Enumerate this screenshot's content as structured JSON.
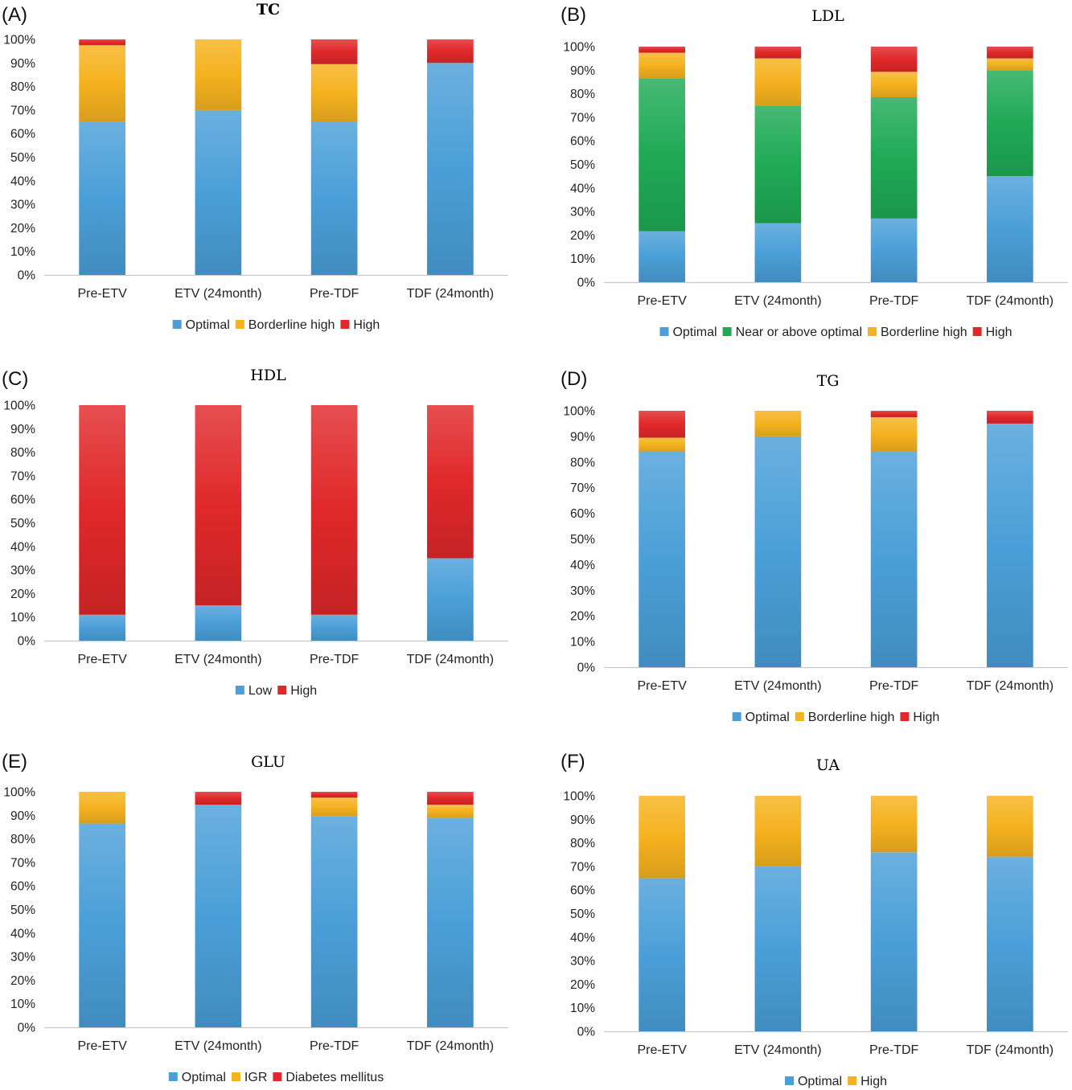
{
  "colors": {
    "Optimal": "#4a9fd8",
    "Low": "#4a9fd8",
    "Near or above optimal": "#1faa55",
    "Borderline high": "#f5b21f",
    "IGR": "#f5b21f",
    "High": "#e0282a",
    "Diabetes mellitus": "#e0282a",
    "UA High": "#f5b21f"
  },
  "chart_data": [
    {
      "panel": "(A)",
      "type": "bar",
      "stacked": true,
      "title": "TC",
      "title_bold": true,
      "categories": [
        "Pre-ETV",
        "ETV (24month)",
        "Pre-TDF",
        "TDF (24month)"
      ],
      "yticks": [
        "0%",
        "10%",
        "20%",
        "30%",
        "40%",
        "50%",
        "60%",
        "70%",
        "80%",
        "90%",
        "100%"
      ],
      "ylim": [
        0,
        100
      ],
      "legend_position": "bottom",
      "series": [
        {
          "name": "Optimal",
          "color": "#4a9fd8",
          "values": [
            65,
            70,
            65,
            90
          ]
        },
        {
          "name": "Borderline high",
          "color": "#f5b21f",
          "values": [
            32.5,
            30,
            24.5,
            0
          ]
        },
        {
          "name": "High",
          "color": "#e0282a",
          "values": [
            2.5,
            0,
            10.5,
            10
          ]
        }
      ]
    },
    {
      "panel": "(B)",
      "type": "bar",
      "stacked": true,
      "title": "LDL",
      "title_bold": false,
      "categories": [
        "Pre-ETV",
        "ETV (24month)",
        "Pre-TDF",
        "TDF (24month)"
      ],
      "yticks": [
        "0%",
        "10%",
        "20%",
        "30%",
        "40%",
        "50%",
        "60%",
        "70%",
        "80%",
        "90%",
        "100%"
      ],
      "ylim": [
        0,
        100
      ],
      "legend_position": "bottom",
      "series": [
        {
          "name": "Optimal",
          "color": "#4a9fd8",
          "values": [
            21.6,
            25,
            27,
            45
          ]
        },
        {
          "name": "Near or above optimal",
          "color": "#1faa55",
          "values": [
            65,
            50,
            51.5,
            45
          ]
        },
        {
          "name": "Borderline high",
          "color": "#f5b21f",
          "values": [
            10.8,
            20,
            10.8,
            5
          ]
        },
        {
          "name": "High",
          "color": "#e0282a",
          "values": [
            2.6,
            5,
            10.7,
            5
          ]
        }
      ]
    },
    {
      "panel": "(C)",
      "type": "bar",
      "stacked": true,
      "title": "HDL",
      "title_bold": false,
      "categories": [
        "Pre-ETV",
        "ETV (24month)",
        "Pre-TDF",
        "TDF (24month)"
      ],
      "yticks": [
        "0%",
        "10%",
        "20%",
        "30%",
        "40%",
        "50%",
        "60%",
        "70%",
        "80%",
        "90%",
        "100%"
      ],
      "ylim": [
        0,
        100
      ],
      "legend_position": "bottom",
      "series": [
        {
          "name": "Low",
          "color": "#4a9fd8",
          "values": [
            11,
            15,
            11,
            35
          ]
        },
        {
          "name": "High",
          "color": "#e0282a",
          "values": [
            89,
            85,
            89,
            65
          ]
        }
      ]
    },
    {
      "panel": "(D)",
      "type": "bar",
      "stacked": true,
      "title": "TG",
      "title_bold": false,
      "categories": [
        "Pre-ETV",
        "ETV (24month)",
        "Pre-TDF",
        "TDF (24month)"
      ],
      "yticks": [
        "0%",
        "10%",
        "20%",
        "30%",
        "40%",
        "50%",
        "60%",
        "70%",
        "80%",
        "90%",
        "100%"
      ],
      "ylim": [
        0,
        100
      ],
      "legend_position": "bottom",
      "series": [
        {
          "name": "Optimal",
          "color": "#4a9fd8",
          "values": [
            84,
            90,
            84,
            95
          ]
        },
        {
          "name": "Borderline high",
          "color": "#f5b21f",
          "values": [
            5.5,
            10,
            13.5,
            0
          ]
        },
        {
          "name": "High",
          "color": "#e0282a",
          "values": [
            10.5,
            0,
            2.5,
            5
          ]
        }
      ]
    },
    {
      "panel": "(E)",
      "type": "bar",
      "stacked": true,
      "title": "GLU",
      "title_bold": false,
      "categories": [
        "Pre-ETV",
        "ETV (24month)",
        "Pre-TDF",
        "TDF (24month)"
      ],
      "yticks": [
        "0%",
        "10%",
        "20%",
        "30%",
        "40%",
        "50%",
        "60%",
        "70%",
        "80%",
        "90%",
        "100%"
      ],
      "ylim": [
        0,
        100
      ],
      "legend_position": "bottom",
      "series": [
        {
          "name": "Optimal",
          "color": "#4a9fd8",
          "values": [
            86.5,
            94.5,
            89.5,
            89
          ]
        },
        {
          "name": "IGR",
          "color": "#f5b21f",
          "values": [
            13.5,
            0,
            8,
            5.5
          ]
        },
        {
          "name": "Diabetes mellitus",
          "color": "#e0282a",
          "values": [
            0,
            5.5,
            2.5,
            5.5
          ]
        }
      ]
    },
    {
      "panel": "(F)",
      "type": "bar",
      "stacked": true,
      "title": "UA",
      "title_bold": false,
      "categories": [
        "Pre-ETV",
        "ETV (24month)",
        "Pre-TDF",
        "TDF (24month)"
      ],
      "yticks": [
        "0%",
        "10%",
        "20%",
        "30%",
        "40%",
        "50%",
        "60%",
        "70%",
        "80%",
        "90%",
        "100%"
      ],
      "ylim": [
        0,
        100
      ],
      "legend_position": "bottom",
      "series": [
        {
          "name": "Optimal",
          "color": "#4a9fd8",
          "values": [
            65,
            70,
            76,
            74
          ]
        },
        {
          "name": "High",
          "color": "#f5b21f",
          "values": [
            35,
            30,
            24,
            26
          ]
        }
      ]
    }
  ]
}
